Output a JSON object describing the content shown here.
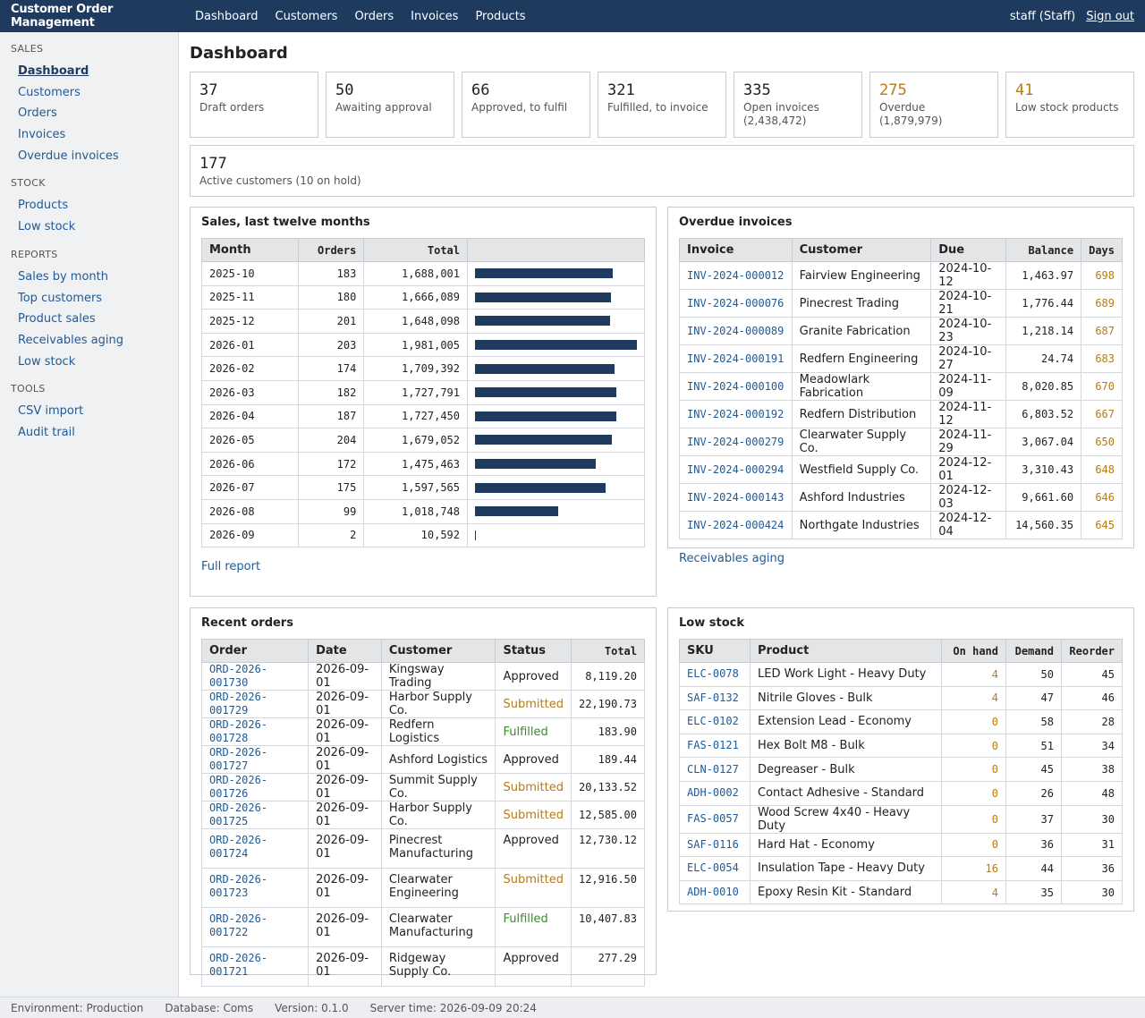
{
  "app": {
    "title": "Customer Order Management"
  },
  "topnav": [
    "Dashboard",
    "Customers",
    "Orders",
    "Invoices",
    "Products"
  ],
  "user": {
    "name": "staff (Staff)",
    "signout": "Sign out"
  },
  "sidebar": [
    {
      "title": "SALES",
      "items": [
        "Dashboard",
        "Customers",
        "Orders",
        "Invoices",
        "Overdue invoices"
      ]
    },
    {
      "title": "STOCK",
      "items": [
        "Products",
        "Low stock"
      ]
    },
    {
      "title": "REPORTS",
      "items": [
        "Sales by month",
        "Top customers",
        "Product sales",
        "Receivables aging",
        "Low stock"
      ]
    },
    {
      "title": "TOOLS",
      "items": [
        "CSV import",
        "Audit trail"
      ]
    }
  ],
  "page_title": "Dashboard",
  "stats": [
    {
      "value": "37",
      "label": "Draft orders",
      "warn": false
    },
    {
      "value": "50",
      "label": "Awaiting approval",
      "warn": false
    },
    {
      "value": "66",
      "label": "Approved, to fulfil",
      "warn": false
    },
    {
      "value": "321",
      "label": "Fulfilled, to invoice",
      "warn": false
    },
    {
      "value": "335",
      "label": "Open invoices (2,438,472)",
      "warn": false
    },
    {
      "value": "275",
      "label": "Overdue (1,879,979)",
      "warn": true
    },
    {
      "value": "41",
      "label": "Low stock products",
      "warn": true
    }
  ],
  "customers_stat": {
    "value": "177",
    "label": "Active customers (10 on hold)"
  },
  "sales": {
    "title": "Sales, last twelve months",
    "headers": [
      "Month",
      "Orders",
      "Total"
    ],
    "rows": [
      {
        "month": "2025-10",
        "orders": "183",
        "total": "1,688,001",
        "value": 1688001
      },
      {
        "month": "2025-11",
        "orders": "180",
        "total": "1,666,089",
        "value": 1666089
      },
      {
        "month": "2025-12",
        "orders": "201",
        "total": "1,648,098",
        "value": 1648098
      },
      {
        "month": "2026-01",
        "orders": "203",
        "total": "1,981,005",
        "value": 1981005
      },
      {
        "month": "2026-02",
        "orders": "174",
        "total": "1,709,392",
        "value": 1709392
      },
      {
        "month": "2026-03",
        "orders": "182",
        "total": "1,727,791",
        "value": 1727791
      },
      {
        "month": "2026-04",
        "orders": "187",
        "total": "1,727,450",
        "value": 1727450
      },
      {
        "month": "2026-05",
        "orders": "204",
        "total": "1,679,052",
        "value": 1679052
      },
      {
        "month": "2026-06",
        "orders": "172",
        "total": "1,475,463",
        "value": 1475463
      },
      {
        "month": "2026-07",
        "orders": "175",
        "total": "1,597,565",
        "value": 1597565
      },
      {
        "month": "2026-08",
        "orders": "99",
        "total": "1,018,748",
        "value": 1018748
      },
      {
        "month": "2026-09",
        "orders": "2",
        "total": "10,592",
        "value": 10592
      }
    ],
    "link": "Full report"
  },
  "overdue": {
    "title": "Overdue invoices",
    "headers": [
      "Invoice",
      "Customer",
      "Due",
      "Balance",
      "Days"
    ],
    "rows": [
      [
        "INV-2024-000012",
        "Fairview Engineering",
        "2024-10-12",
        "1,463.97",
        "698"
      ],
      [
        "INV-2024-000076",
        "Pinecrest Trading",
        "2024-10-21",
        "1,776.44",
        "689"
      ],
      [
        "INV-2024-000089",
        "Granite Fabrication",
        "2024-10-23",
        "1,218.14",
        "687"
      ],
      [
        "INV-2024-000191",
        "Redfern Engineering",
        "2024-10-27",
        "24.74",
        "683"
      ],
      [
        "INV-2024-000100",
        "Meadowlark Fabrication",
        "2024-11-09",
        "8,020.85",
        "670"
      ],
      [
        "INV-2024-000192",
        "Redfern Distribution",
        "2024-11-12",
        "6,803.52",
        "667"
      ],
      [
        "INV-2024-000279",
        "Clearwater Supply Co.",
        "2024-11-29",
        "3,067.04",
        "650"
      ],
      [
        "INV-2024-000294",
        "Westfield Supply Co.",
        "2024-12-01",
        "3,310.43",
        "648"
      ],
      [
        "INV-2024-000143",
        "Ashford Industries",
        "2024-12-03",
        "9,661.60",
        "646"
      ],
      [
        "INV-2024-000424",
        "Northgate Industries",
        "2024-12-04",
        "14,560.35",
        "645"
      ]
    ],
    "link": "Receivables aging"
  },
  "recent": {
    "title": "Recent orders",
    "headers": [
      "Order",
      "Date",
      "Customer",
      "Status",
      "Total"
    ],
    "rows": [
      [
        "ORD-2026-001730",
        "2026-09-01",
        "Kingsway Trading",
        "Approved",
        "8,119.20"
      ],
      [
        "ORD-2026-001729",
        "2026-09-01",
        "Harbor Supply Co.",
        "Submitted",
        "22,190.73"
      ],
      [
        "ORD-2026-001728",
        "2026-09-01",
        "Redfern Logistics",
        "Fulfilled",
        "183.90"
      ],
      [
        "ORD-2026-001727",
        "2026-09-01",
        "Ashford Logistics",
        "Approved",
        "189.44"
      ],
      [
        "ORD-2026-001726",
        "2026-09-01",
        "Summit Supply Co.",
        "Submitted",
        "20,133.52"
      ],
      [
        "ORD-2026-001725",
        "2026-09-01",
        "Harbor Supply Co.",
        "Submitted",
        "12,585.00"
      ],
      [
        "ORD-2026-001724",
        "2026-09-01",
        "Pinecrest Manufacturing",
        "Approved",
        "12,730.12"
      ],
      [
        "ORD-2026-001723",
        "2026-09-01",
        "Clearwater Engineering",
        "Submitted",
        "12,916.50"
      ],
      [
        "ORD-2026-001722",
        "2026-09-01",
        "Clearwater Manufacturing",
        "Fulfilled",
        "10,407.83"
      ],
      [
        "ORD-2026-001721",
        "2026-09-01",
        "Ridgeway Supply Co.",
        "Approved",
        "277.29"
      ]
    ]
  },
  "lowstock": {
    "title": "Low stock",
    "headers": [
      "SKU",
      "Product",
      "On hand",
      "Demand",
      "Reorder"
    ],
    "rows": [
      [
        "ELC-0078",
        "LED Work Light - Heavy Duty",
        "4",
        "50",
        "45"
      ],
      [
        "SAF-0132",
        "Nitrile Gloves - Bulk",
        "4",
        "47",
        "46"
      ],
      [
        "ELC-0102",
        "Extension Lead - Economy",
        "0",
        "58",
        "28"
      ],
      [
        "FAS-0121",
        "Hex Bolt M8 - Bulk",
        "0",
        "51",
        "34"
      ],
      [
        "CLN-0127",
        "Degreaser - Bulk",
        "0",
        "45",
        "38"
      ],
      [
        "ADH-0002",
        "Contact Adhesive - Standard",
        "0",
        "26",
        "48"
      ],
      [
        "FAS-0057",
        "Wood Screw 4x40 - Heavy Duty",
        "0",
        "37",
        "30"
      ],
      [
        "SAF-0116",
        "Hard Hat - Economy",
        "0",
        "36",
        "31"
      ],
      [
        "ELC-0054",
        "Insulation Tape - Heavy Duty",
        "16",
        "44",
        "36"
      ],
      [
        "ADH-0010",
        "Epoxy Resin Kit - Standard",
        "4",
        "35",
        "30"
      ]
    ]
  },
  "statusbar": [
    "Environment: Production",
    "Database: Coms",
    "Version: 0.1.0",
    "Server time: 2026-09-09 20:24"
  ],
  "colors": {
    "accent": "#1f3a5f",
    "link": "#1f5a96",
    "warn": "#b77b14",
    "ok": "#3d8a2d"
  }
}
